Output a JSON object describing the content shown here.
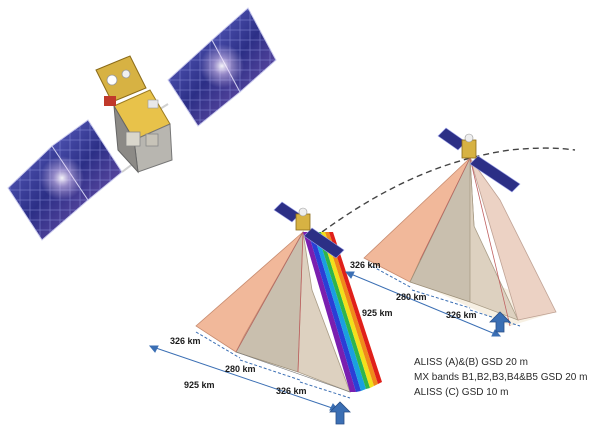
{
  "swath_labels": {
    "front": {
      "left": "326 km",
      "middle": "280 km",
      "right": "326 km",
      "total": "925 km"
    },
    "back": {
      "left": "326 km",
      "middle": "280 km",
      "right": "326 km",
      "total": "925 km"
    }
  },
  "legend": [
    "ALISS (A)&(B) GSD 20 m",
    "MX bands B1,B2,B3,B4&B5 GSD 20 m",
    "ALISS (C) GSD 10 m"
  ],
  "icons": [
    "satellite-large",
    "satellite-small-front",
    "satellite-small-back",
    "flight-direction-arrow"
  ],
  "colors": {
    "left_swath": "#f1b89a",
    "center_swath": "#c9bfae",
    "right_swath": "#ecd2c4",
    "solar_panel": "#3a3f9a",
    "arrow": "#3b6fb4",
    "spectrum": [
      "#7a1fb0",
      "#2a3fd6",
      "#1aa0e0",
      "#2fb54a",
      "#f2e01a",
      "#f08a1a",
      "#e0201a"
    ]
  }
}
